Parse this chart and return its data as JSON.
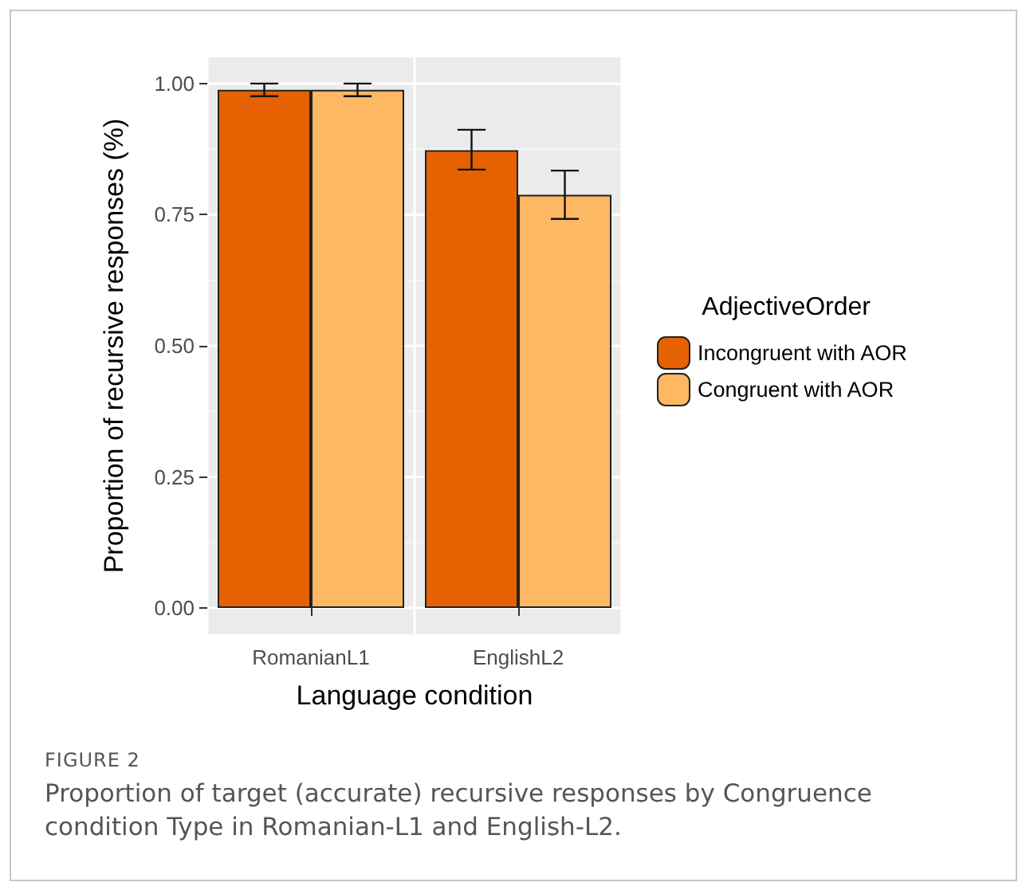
{
  "chart_data": {
    "type": "bar",
    "xlabel": "Language condition",
    "ylabel": "Proportion of recursive responses (%)",
    "legend_title": "AdjectiveOrder",
    "categories": [
      "RomanianL1",
      "EnglishL2"
    ],
    "series": [
      {
        "name": "Incongruent with AOR",
        "color": "#e66101",
        "values": [
          0.988,
          0.873
        ],
        "errors": [
          [
            0.976,
            1.0
          ],
          [
            0.836,
            0.912
          ]
        ]
      },
      {
        "name": "Congruent with AOR",
        "color": "#fdb863",
        "values": [
          0.988,
          0.788
        ],
        "errors": [
          [
            0.976,
            1.0
          ],
          [
            0.742,
            0.834
          ]
        ]
      }
    ],
    "ylim": [
      -0.05,
      1.05
    ],
    "yticks": [
      {
        "value": 0,
        "label": "0.00"
      },
      {
        "value": 0.25,
        "label": "0.25"
      },
      {
        "value": 0.5,
        "label": "0.50"
      },
      {
        "value": 0.75,
        "label": "0.75"
      },
      {
        "value": 1,
        "label": "1.00"
      }
    ],
    "grid": true,
    "legend": "right",
    "annotations": [
      "FIGURE 2",
      "Proportion of target (accurate) recursive responses by Congruence condition Type in Romanian-L1 and English-L2."
    ]
  }
}
